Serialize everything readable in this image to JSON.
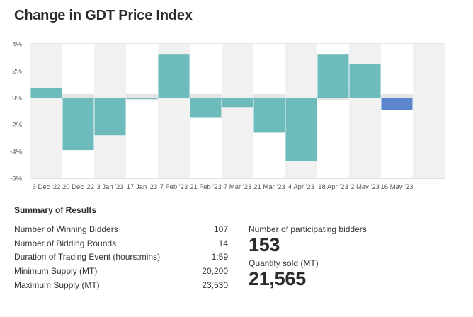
{
  "header": {
    "title": "Change in GDT Price Index"
  },
  "chart_data": {
    "type": "bar",
    "title": "Change in GDT Price Index",
    "xlabel": "",
    "ylabel": "",
    "ylim": [
      -6,
      4
    ],
    "yticks": [
      4,
      2,
      0,
      -2,
      -4,
      -6
    ],
    "ytick_labels": [
      "4%",
      "2%",
      "0%",
      "-2%",
      "-4%",
      "-6%"
    ],
    "categories": [
      "6 Dec '22",
      "20 Dec '22",
      "3 Jan '23",
      "17 Jan '23",
      "7 Feb '23",
      "21 Feb '23",
      "7 Mar '23",
      "21 Mar '23",
      "4 Apr '23",
      "18 Apr '23",
      "2 May '23",
      "16 May '23"
    ],
    "values": [
      0.7,
      -3.9,
      -2.8,
      -0.1,
      3.2,
      -1.5,
      -0.7,
      -2.6,
      -4.7,
      3.2,
      2.5,
      -0.9
    ],
    "colors": {
      "default": "#6dbbbb",
      "latest": "#5b86cc",
      "band": "#f1f1f1",
      "zero_band": "#e5e5e5"
    },
    "grid": false,
    "legend": "none"
  },
  "summary": {
    "title": "Summary of Results",
    "rows": [
      {
        "label": "Number of Winning Bidders",
        "value": "107"
      },
      {
        "label": "Number of Bidding Rounds",
        "value": "14"
      },
      {
        "label": "Duration of Trading Event (hours:mins)",
        "value": "1:59"
      },
      {
        "label": "Minimum Supply (MT)",
        "value": "20,200"
      },
      {
        "label": "Maximum Supply (MT)",
        "value": "23,530"
      }
    ],
    "participating_label": "Number of participating bidders",
    "participating_value": "153",
    "quantity_label": "Quantity sold (MT)",
    "quantity_value": "21,565"
  }
}
